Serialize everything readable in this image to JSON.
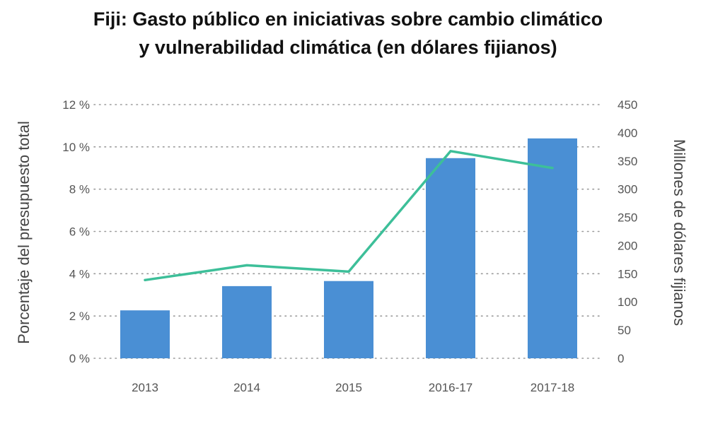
{
  "chart_data": {
    "type": "bar",
    "title_lines": [
      "Fiji: Gasto público en iniciativas sobre cambio climático",
      "y vulnerabilidad climática (en dólares fijianos)"
    ],
    "categories": [
      "2013",
      "2014",
      "2015",
      "2016-17",
      "2017-18"
    ],
    "series": [
      {
        "type": "bar",
        "axis": "right",
        "values": [
          85,
          128,
          137,
          355,
          390
        ]
      },
      {
        "type": "line",
        "axis": "left",
        "values": [
          3.7,
          4.4,
          4.1,
          9.8,
          9.0
        ]
      }
    ],
    "ylabel_left": "Porcentaje del presupuesto total",
    "ylabel_right": "Millones de dólares fijianos",
    "y_left_ticks": [
      "0 %",
      "2 %",
      "4 %",
      "6 %",
      "8 %",
      "10 %",
      "12 %"
    ],
    "y_right_ticks": [
      "0",
      "50",
      "100",
      "150",
      "200",
      "250",
      "300",
      "350",
      "400",
      "450"
    ],
    "ylim_left": [
      0,
      12
    ],
    "ylim_right": [
      0,
      450
    ],
    "grid": true,
    "colors": {
      "bar": "#4a8fd4",
      "line": "#3dbf99"
    }
  }
}
